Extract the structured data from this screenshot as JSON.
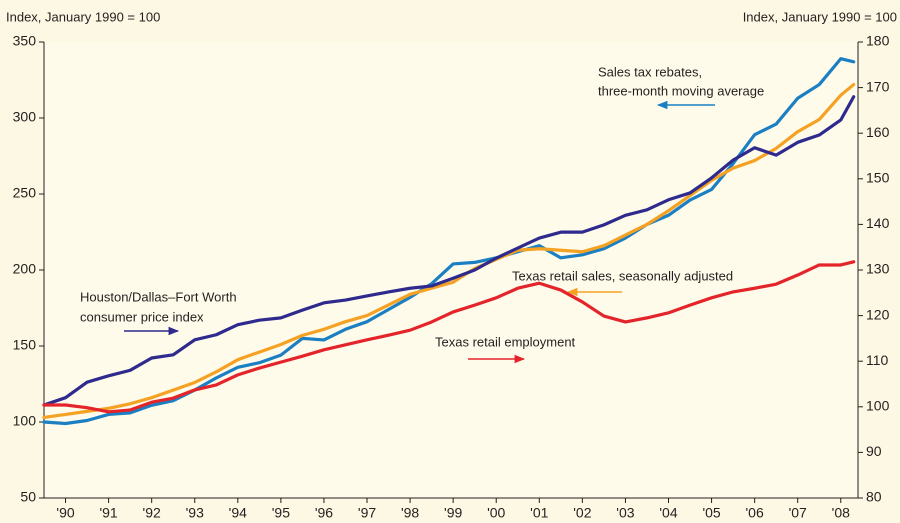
{
  "chart_data": {
    "type": "line",
    "y_label": "Index, January 1990 = 100",
    "y2_label": "Index, January 1990 = 100",
    "annotations": [
      "Sales tax rebates,",
      "three-month moving average",
      "Texas retail sales, seasonally adjusted",
      "Houston/Dallas–Fort Worth",
      "consumer price index",
      "Texas retail employment"
    ],
    "x": [
      1989.5,
      1990,
      1990.5,
      1991,
      1991.5,
      1992,
      1992.5,
      1993,
      1993.5,
      1994,
      1994.5,
      1995,
      1995.5,
      1996,
      1996.5,
      1997,
      1997.5,
      1998,
      1998.5,
      1999,
      1999.5,
      2000,
      2000.5,
      2001,
      2001.5,
      2002,
      2002.5,
      2003,
      2003.5,
      2004,
      2004.5,
      2005,
      2005.5,
      2006,
      2006.5,
      2007,
      2007.5,
      2008,
      2008.3
    ],
    "series": [
      {
        "color": "#1b7fc3",
        "axis": "y",
        "values": [
          100,
          99,
          101,
          105,
          106,
          111,
          114,
          121,
          129,
          136,
          139,
          144,
          155,
          154,
          161,
          166,
          174,
          182,
          191,
          204,
          205,
          208,
          212,
          216,
          208,
          210,
          214,
          221,
          230,
          236,
          246,
          253,
          270,
          289,
          296,
          313,
          322,
          339,
          337
        ]
      },
      {
        "color": "#f5a224",
        "axis": "y",
        "values": [
          103,
          105,
          107,
          109,
          112,
          116,
          121,
          126,
          133,
          141,
          146,
          151,
          157,
          161,
          166,
          170,
          177,
          184,
          188,
          192,
          201,
          207,
          213,
          214,
          213,
          212,
          216,
          223,
          230,
          239,
          249,
          259,
          267,
          272,
          280,
          291,
          299,
          315,
          322
        ]
      },
      {
        "color": "#2e2a8e",
        "axis": "y2",
        "values": [
          100.4,
          102,
          105.4,
          106.8,
          108,
          110.7,
          111.4,
          114.7,
          115.8,
          118,
          119,
          119.5,
          121.2,
          122.8,
          123.4,
          124.3,
          125.2,
          126,
          126.5,
          128.2,
          130,
          132.6,
          134.8,
          137,
          138.3,
          138.3,
          139.9,
          142,
          143.2,
          145.4,
          146.9,
          150.2,
          154.1,
          156.8,
          155.2,
          158,
          159.6,
          162.9,
          168
        ]
      },
      {
        "color": "#e3252b",
        "axis": "y2",
        "values": [
          100.4,
          100.4,
          99.8,
          98.9,
          99.3,
          101,
          101.9,
          103.7,
          104.8,
          107,
          108.5,
          109.8,
          111.1,
          112.5,
          113.6,
          114.7,
          115.7,
          116.8,
          118.6,
          120.8,
          122.3,
          123.9,
          126,
          127.1,
          125.6,
          123,
          119.9,
          118.6,
          119.5,
          120.6,
          122.3,
          123.9,
          125.2,
          126,
          126.9,
          128.9,
          131.1,
          131.1,
          131.8
        ]
      }
    ],
    "xlim": [
      1989.5,
      2008.4
    ],
    "xticks": [
      {
        "value": 1990,
        "label": "'90"
      },
      {
        "value": 1991,
        "label": "'91"
      },
      {
        "value": 1992,
        "label": "'92"
      },
      {
        "value": 1993,
        "label": "'93"
      },
      {
        "value": 1994,
        "label": "'94"
      },
      {
        "value": 1995,
        "label": "'95"
      },
      {
        "value": 1996,
        "label": "'96"
      },
      {
        "value": 1997,
        "label": "'97"
      },
      {
        "value": 1998,
        "label": "'98"
      },
      {
        "value": 1999,
        "label": "'99"
      },
      {
        "value": 2000,
        "label": "'00"
      },
      {
        "value": 2001,
        "label": "'01"
      },
      {
        "value": 2002,
        "label": "'02"
      },
      {
        "value": 2003,
        "label": "'03"
      },
      {
        "value": 2004,
        "label": "'04"
      },
      {
        "value": 2005,
        "label": "'05"
      },
      {
        "value": 2006,
        "label": "'06"
      },
      {
        "value": 2007,
        "label": "'07"
      },
      {
        "value": 2008,
        "label": "'08"
      }
    ],
    "ylim": [
      50,
      350
    ],
    "yticks": [
      50,
      100,
      150,
      200,
      250,
      300,
      350
    ],
    "y2lim": [
      80,
      180
    ],
    "y2ticks": [
      80,
      90,
      100,
      110,
      120,
      130,
      140,
      150,
      160,
      170,
      180
    ],
    "grid": false
  }
}
